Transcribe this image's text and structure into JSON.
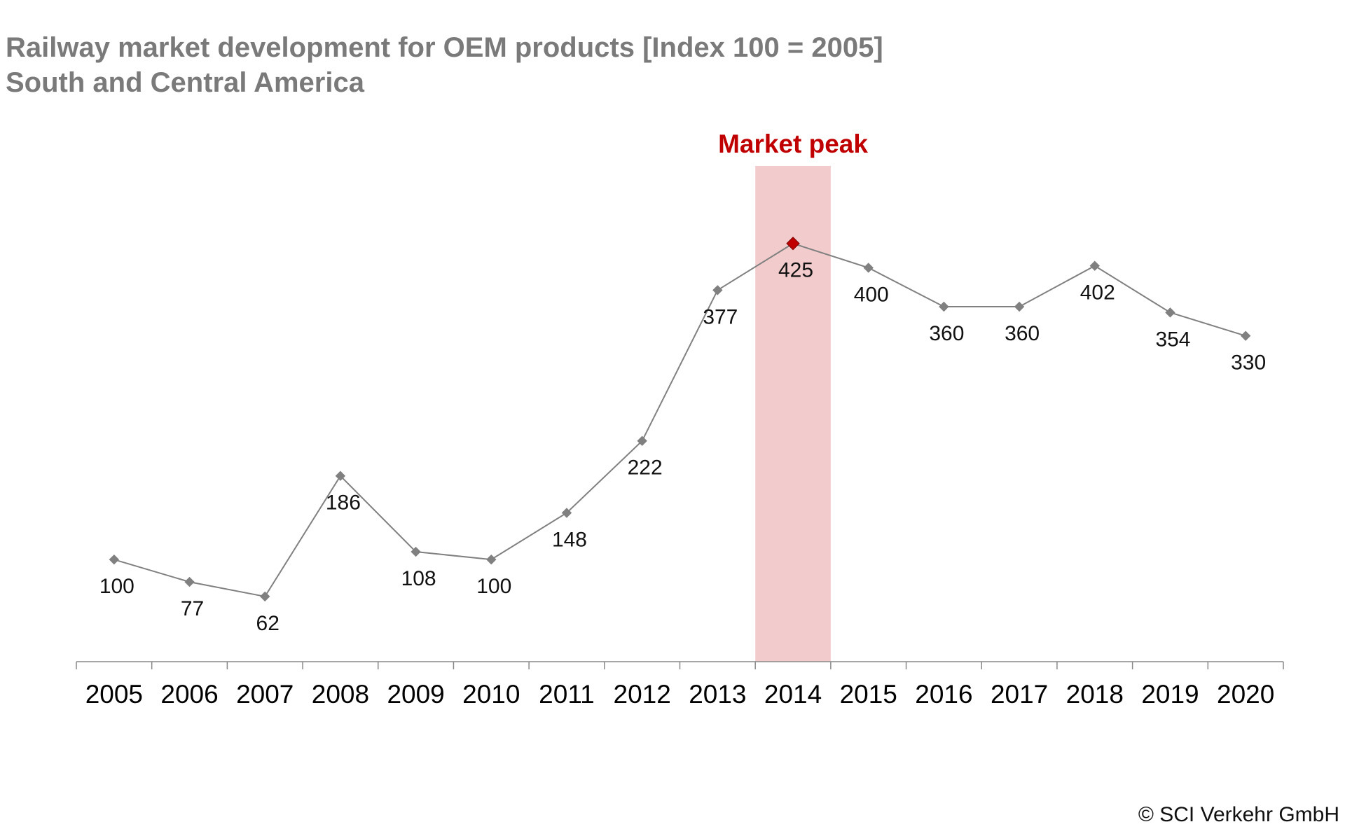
{
  "chart_data": {
    "type": "line",
    "title": "Railway market development for OEM products [Index 100 = 2005]",
    "subtitle": "South and Central America",
    "categories": [
      "2005",
      "2006",
      "2007",
      "2008",
      "2009",
      "2010",
      "2011",
      "2012",
      "2013",
      "2014",
      "2015",
      "2016",
      "2017",
      "2018",
      "2019",
      "2020"
    ],
    "series": [
      {
        "values": [
          100,
          77,
          62,
          186,
          108,
          100,
          148,
          222,
          377,
          425,
          400,
          360,
          360,
          402,
          354,
          330
        ],
        "color": "#808080"
      }
    ],
    "data_labels": [
      "100",
      "77",
      "62",
      "186",
      "108",
      "100",
      "148",
      "222",
      "377",
      "425",
      "400",
      "360",
      "360",
      "402",
      "354",
      "330"
    ],
    "ylim": [
      -5,
      450
    ],
    "grid": false,
    "legend": "none",
    "highlight": {
      "category": "2014",
      "label": "Market peak",
      "band_color": "#f2cccc",
      "marker_color": "#c00000"
    },
    "marker": "diamond",
    "footer": "© SCI Verkehr GmbH"
  }
}
